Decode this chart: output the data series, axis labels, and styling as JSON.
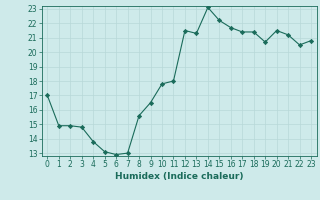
{
  "x": [
    0,
    1,
    2,
    3,
    4,
    5,
    6,
    7,
    8,
    9,
    10,
    11,
    12,
    13,
    14,
    15,
    16,
    17,
    18,
    19,
    20,
    21,
    22,
    23
  ],
  "y": [
    17.0,
    14.9,
    14.9,
    14.8,
    13.8,
    13.1,
    12.9,
    13.0,
    15.6,
    16.5,
    17.8,
    18.0,
    21.5,
    21.3,
    23.1,
    22.2,
    21.7,
    21.4,
    21.4,
    20.7,
    21.5,
    21.2,
    20.5,
    20.8
  ],
  "line_color": "#1a6b5a",
  "marker": "D",
  "marker_size": 2.2,
  "bg_color": "#ceeaea",
  "grid_color": "#b8d8d8",
  "xlabel": "Humidex (Indice chaleur)",
  "ylim": [
    13,
    23
  ],
  "xlim": [
    -0.5,
    23.5
  ],
  "yticks": [
    13,
    14,
    15,
    16,
    17,
    18,
    19,
    20,
    21,
    22,
    23
  ],
  "xticks": [
    0,
    1,
    2,
    3,
    4,
    5,
    6,
    7,
    8,
    9,
    10,
    11,
    12,
    13,
    14,
    15,
    16,
    17,
    18,
    19,
    20,
    21,
    22,
    23
  ],
  "tick_color": "#1a6b5a",
  "label_fontsize": 5.5,
  "axis_fontsize": 6.5,
  "linewidth": 0.8
}
